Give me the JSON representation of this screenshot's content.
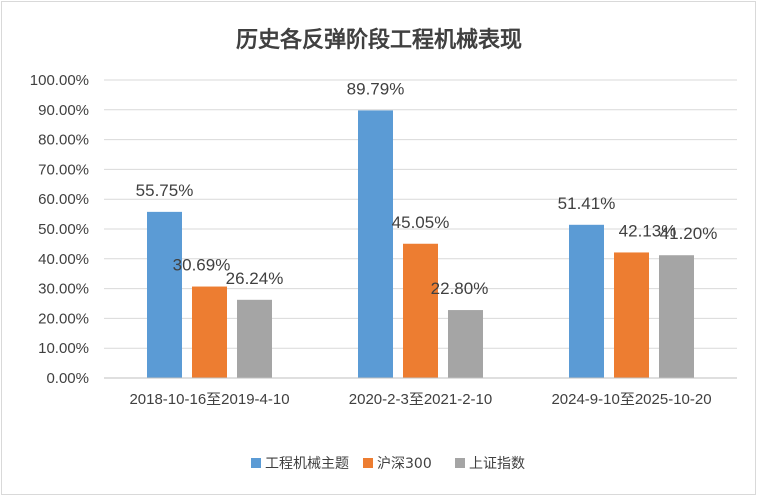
{
  "chart_data": {
    "type": "bar",
    "title": "历史各反弹阶段工程机械表现",
    "categories": [
      "2018-10-16至2019-4-10",
      "2020-2-3至2021-2-10",
      "2024-9-10至2025-10-20"
    ],
    "series": [
      {
        "name": "工程机械主题",
        "color": "#5b9bd5",
        "values": [
          55.75,
          89.79,
          51.41
        ],
        "labels": [
          "55.75%",
          "89.79%",
          "51.41%"
        ]
      },
      {
        "name": "沪深300",
        "color": "#ed7d31",
        "values": [
          30.69,
          45.05,
          42.13
        ],
        "labels": [
          "30.69%",
          "45.05%",
          "42.13%"
        ]
      },
      {
        "name": "上证指数",
        "color": "#a5a5a5",
        "values": [
          26.24,
          22.8,
          41.2
        ],
        "labels": [
          "26.24%",
          "22.80%",
          "41.20%"
        ]
      }
    ],
    "y_ticks": [
      "0.00%",
      "10.00%",
      "20.00%",
      "30.00%",
      "40.00%",
      "50.00%",
      "60.00%",
      "70.00%",
      "80.00%",
      "90.00%",
      "100.00%"
    ],
    "ylim": [
      0,
      100
    ],
    "grid": true,
    "legend_position": "bottom"
  }
}
